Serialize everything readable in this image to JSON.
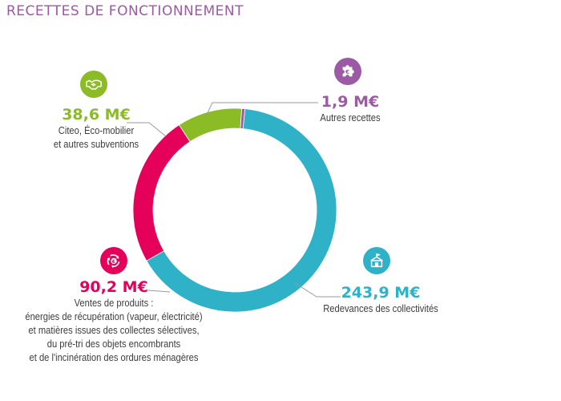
{
  "title": "RECETTES DE FONCTIONNEMENT",
  "chart_data": {
    "type": "pie",
    "variant": "donut",
    "title": "RECETTES DE FONCTIONNEMENT",
    "unit": "M€",
    "slices": [
      {
        "value_label": "243,9 M€",
        "value": 243.9,
        "label_lines": [
          "Redevances des collectivités"
        ],
        "color": "#2fb1c7",
        "icon": "building-icon"
      },
      {
        "value_label": "90,2 M€",
        "value": 90.2,
        "label_lines": [
          "Ventes de produits :",
          "énergies de récupération (vapeur, électricité)",
          "et matières issues des collectes sélectives,",
          "du pré-tri des objets encombrants",
          "et de l'incinération des ordures ménagères"
        ],
        "color": "#e5005a",
        "icon": "recycle-euro-icon"
      },
      {
        "value_label": "38,6 M€",
        "value": 38.6,
        "label_lines": [
          "Citeo, Éco-mobilier",
          "et autres subventions"
        ],
        "color": "#8bbb25",
        "icon": "handshake-icon"
      },
      {
        "value_label": "1,9 M€",
        "value": 1.9,
        "label_lines": [
          "Autres recettes"
        ],
        "color": "#9b5aa3",
        "icon": "puzzle-euro-icon"
      }
    ]
  }
}
